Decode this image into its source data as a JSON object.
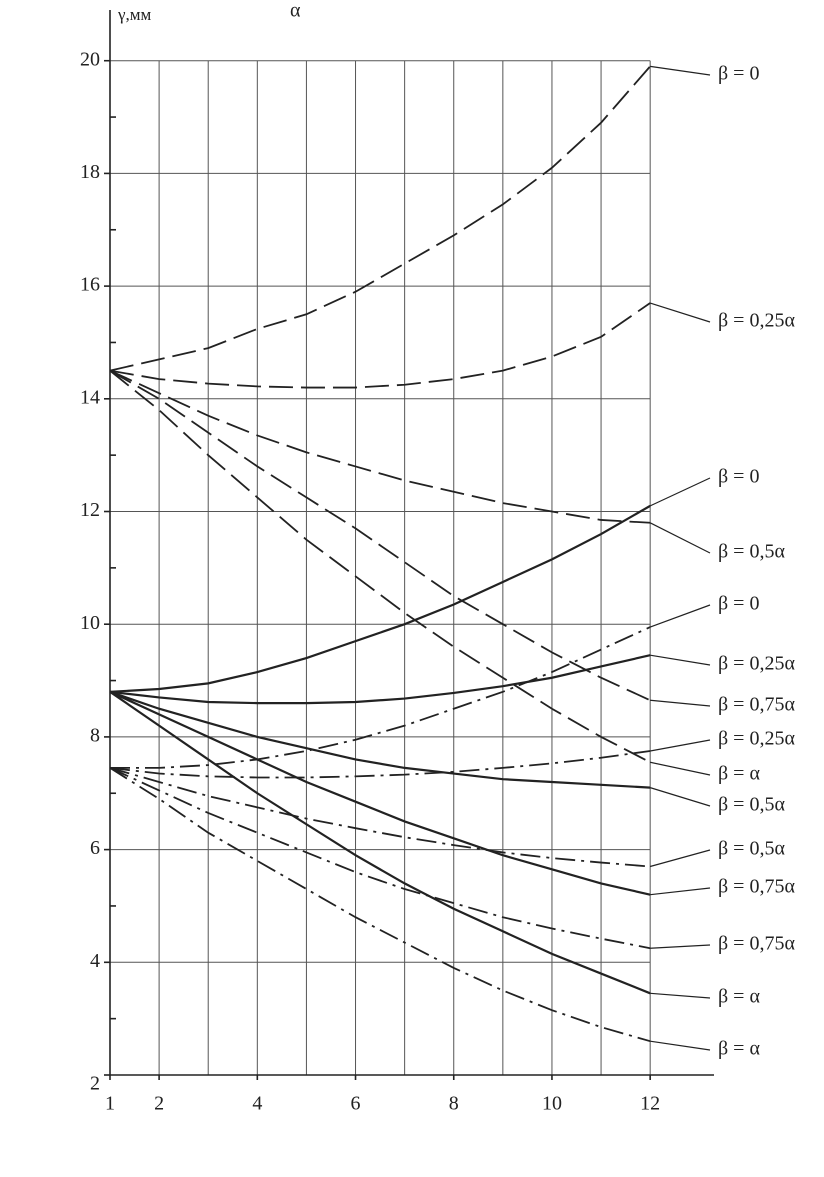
{
  "chart_data": {
    "type": "line",
    "title": "α",
    "ylabel": "γ,мм",
    "x": [
      1,
      2,
      3,
      4,
      5,
      6,
      7,
      8,
      9,
      10,
      11,
      12
    ],
    "xlim": [
      1,
      13.3
    ],
    "xticks": [
      1,
      2,
      4,
      6,
      8,
      10,
      12
    ],
    "xgrid": [
      2,
      3,
      4,
      5,
      6,
      7,
      8,
      9,
      10,
      11,
      12
    ],
    "ylim": [
      2,
      20.9
    ],
    "yticks": [
      2,
      4,
      6,
      8,
      10,
      12,
      14,
      16,
      18,
      20
    ],
    "yminor": [
      3,
      5,
      7,
      9,
      11,
      13,
      15,
      17,
      19
    ],
    "grid": true,
    "series": [
      {
        "name": "β = 0",
        "color": "#222",
        "line_style": "dashed",
        "values": [
          14.5,
          14.7,
          14.9,
          15.24,
          15.5,
          15.9,
          16.4,
          16.9,
          17.45,
          18.1,
          18.9,
          19.9
        ]
      },
      {
        "name": "β = 0,25α",
        "color": "#222",
        "line_style": "dashed",
        "values": [
          14.5,
          14.35,
          14.27,
          14.22,
          14.2,
          14.2,
          14.25,
          14.35,
          14.5,
          14.75,
          15.1,
          15.7
        ]
      },
      {
        "name": "β = 0,5α",
        "color": "#222",
        "line_style": "dashed",
        "values": [
          14.5,
          14.1,
          13.7,
          13.35,
          13.05,
          12.8,
          12.55,
          12.35,
          12.15,
          12.0,
          11.85,
          11.8
        ]
      },
      {
        "name": "β = 0,75α",
        "color": "#222",
        "line_style": "dashed",
        "values": [
          14.5,
          14.0,
          13.4,
          12.8,
          12.25,
          11.7,
          11.1,
          10.5,
          10.0,
          9.5,
          9.05,
          8.65
        ]
      },
      {
        "name": "β = α",
        "color": "#222",
        "line_style": "dashed",
        "values": [
          14.5,
          13.8,
          13.0,
          12.25,
          11.5,
          10.85,
          10.2,
          9.6,
          9.05,
          8.5,
          8.0,
          7.55
        ]
      },
      {
        "name": "β = 0",
        "color": "#222",
        "line_style": "solid",
        "values": [
          8.8,
          8.85,
          8.95,
          9.15,
          9.4,
          9.7,
          10.0,
          10.35,
          10.75,
          11.15,
          11.6,
          12.1
        ]
      },
      {
        "name": "β = 0,25α",
        "color": "#222",
        "line_style": "solid",
        "values": [
          8.8,
          8.7,
          8.62,
          8.6,
          8.6,
          8.62,
          8.68,
          8.78,
          8.9,
          9.05,
          9.25,
          9.45
        ]
      },
      {
        "name": "β = 0,5α",
        "color": "#222",
        "line_style": "solid",
        "values": [
          8.8,
          8.5,
          8.25,
          8.0,
          7.8,
          7.6,
          7.45,
          7.35,
          7.25,
          7.2,
          7.15,
          7.1
        ]
      },
      {
        "name": "β = 0,75α",
        "color": "#222",
        "line_style": "solid",
        "values": [
          8.8,
          8.4,
          8.0,
          7.6,
          7.2,
          6.85,
          6.5,
          6.2,
          5.9,
          5.65,
          5.4,
          5.2
        ]
      },
      {
        "name": "β = α",
        "color": "#222",
        "line_style": "solid",
        "values": [
          8.8,
          8.2,
          7.6,
          7.0,
          6.45,
          5.9,
          5.4,
          4.95,
          4.55,
          4.15,
          3.8,
          3.45
        ]
      },
      {
        "name": "β = 0",
        "color": "#222",
        "line_style": "dashdot",
        "values": [
          7.45,
          7.45,
          7.5,
          7.6,
          7.75,
          7.95,
          8.2,
          8.5,
          8.8,
          9.15,
          9.55,
          9.95
        ]
      },
      {
        "name": "β = 0,25α",
        "color": "#222",
        "line_style": "dashdot",
        "values": [
          7.45,
          7.35,
          7.3,
          7.28,
          7.28,
          7.3,
          7.33,
          7.38,
          7.45,
          7.53,
          7.63,
          7.75
        ]
      },
      {
        "name": "β = 0,5α",
        "color": "#222",
        "line_style": "dashdot",
        "values": [
          7.45,
          7.2,
          6.95,
          6.75,
          6.55,
          6.38,
          6.22,
          6.08,
          5.95,
          5.85,
          5.77,
          5.7
        ]
      },
      {
        "name": "β = 0,75α",
        "color": "#222",
        "line_style": "dashdot",
        "values": [
          7.45,
          7.05,
          6.65,
          6.3,
          5.95,
          5.6,
          5.3,
          5.05,
          4.8,
          4.6,
          4.42,
          4.25
        ]
      },
      {
        "name": "β = α",
        "color": "#222",
        "line_style": "dashdot",
        "values": [
          7.45,
          6.9,
          6.3,
          5.8,
          5.3,
          4.8,
          4.35,
          3.9,
          3.5,
          3.15,
          2.85,
          2.6
        ]
      }
    ]
  }
}
